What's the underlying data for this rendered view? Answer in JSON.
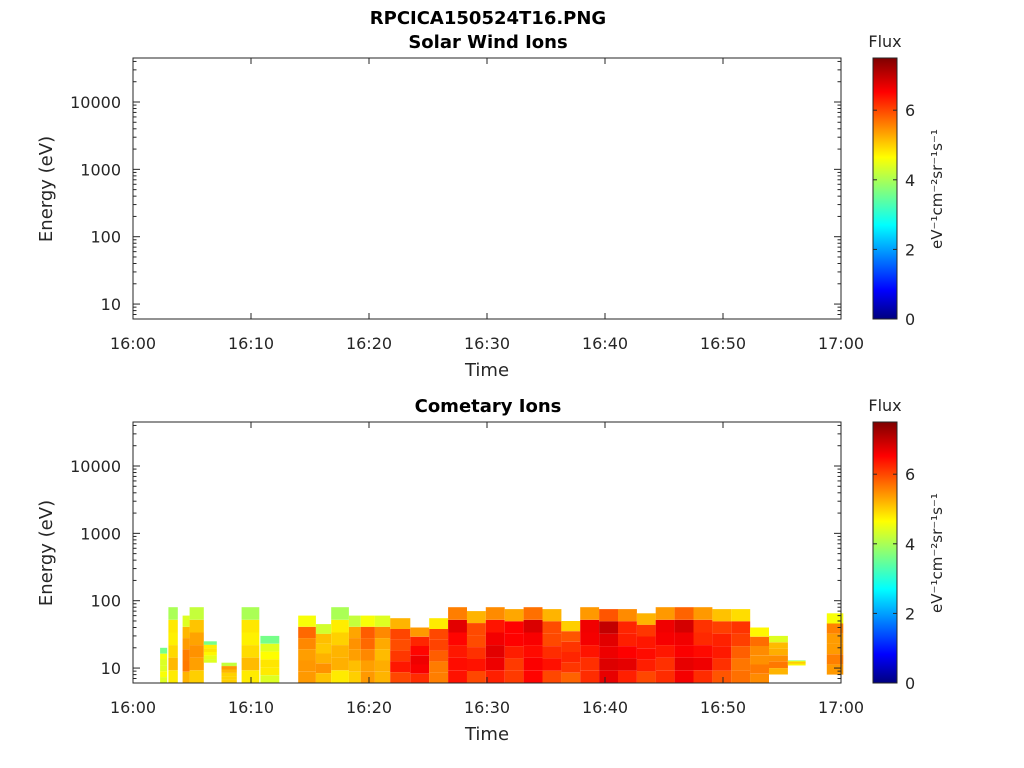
{
  "figure": {
    "title": "RPCICA150524T16.PNG"
  },
  "colormap": {
    "name": "jet",
    "stops": [
      "#00007f",
      "#0000ff",
      "#00ffff",
      "#ffff00",
      "#ff0000",
      "#7f0000"
    ]
  },
  "chart_data": [
    {
      "type": "heatmap",
      "title": "Solar Wind Ions",
      "xlabel": "Time",
      "ylabel": "Energy (eV)",
      "x_ticks": [
        "16:00",
        "16:10",
        "16:20",
        "16:30",
        "16:40",
        "16:50",
        "17:00"
      ],
      "xlim_minutes": [
        0,
        60
      ],
      "y_ticks": [
        "10",
        "100",
        "1000",
        "10000"
      ],
      "y_tick_values": [
        10,
        100,
        1000,
        10000
      ],
      "ylim": [
        6,
        45000
      ],
      "y_scale": "log",
      "colorbar": {
        "title": "Flux",
        "label": "eV⁻¹cm⁻²sr⁻¹s⁻¹",
        "ticks": [
          "0",
          "2",
          "4",
          "6"
        ],
        "range": [
          0,
          7.5
        ]
      },
      "columns": []
    },
    {
      "type": "heatmap",
      "title": "Cometary Ions",
      "xlabel": "Time",
      "ylabel": "Energy (eV)",
      "x_ticks": [
        "16:00",
        "16:10",
        "16:20",
        "16:30",
        "16:40",
        "16:50",
        "17:00"
      ],
      "xlim_minutes": [
        0,
        60
      ],
      "y_ticks": [
        "10",
        "100",
        "1000",
        "10000"
      ],
      "y_tick_values": [
        10,
        100,
        1000,
        10000
      ],
      "ylim": [
        6,
        45000
      ],
      "y_scale": "log",
      "colorbar": {
        "title": "Flux",
        "label": "eV⁻¹cm⁻²sr⁻¹s⁻¹",
        "ticks": [
          "0",
          "2",
          "4",
          "6"
        ],
        "range": [
          0,
          7.5
        ]
      },
      "columns": [
        {
          "t": 2.3,
          "w": 0.6,
          "emin": 6,
          "emax": 20,
          "flux": 4.6
        },
        {
          "t": 3.0,
          "w": 0.8,
          "emin": 6,
          "emax": 80,
          "flux": 5.0
        },
        {
          "t": 4.2,
          "w": 0.6,
          "emin": 6,
          "emax": 60,
          "flux": 5.4
        },
        {
          "t": 4.8,
          "w": 1.2,
          "emin": 6,
          "emax": 80,
          "flux": 5.2
        },
        {
          "t": 6.0,
          "w": 1.1,
          "emin": 12,
          "emax": 25,
          "flux": 4.6
        },
        {
          "t": 7.5,
          "w": 1.3,
          "emin": 6,
          "emax": 12,
          "flux": 5.2
        },
        {
          "t": 9.2,
          "w": 1.5,
          "emin": 6,
          "emax": 80,
          "flux": 5.0
        },
        {
          "t": 10.8,
          "w": 1.6,
          "emin": 6,
          "emax": 30,
          "flux": 4.6
        },
        {
          "t": 14.0,
          "w": 1.5,
          "emin": 6,
          "emax": 60,
          "flux": 5.6
        },
        {
          "t": 15.5,
          "w": 1.3,
          "emin": 6,
          "emax": 45,
          "flux": 5.3
        },
        {
          "t": 16.8,
          "w": 1.5,
          "emin": 6,
          "emax": 80,
          "flux": 5.0
        },
        {
          "t": 18.3,
          "w": 1.0,
          "emin": 6,
          "emax": 60,
          "flux": 5.2
        },
        {
          "t": 19.3,
          "w": 1.2,
          "emin": 6,
          "emax": 60,
          "flux": 5.6
        },
        {
          "t": 20.5,
          "w": 1.3,
          "emin": 6,
          "emax": 60,
          "flux": 5.4
        },
        {
          "t": 21.8,
          "w": 1.7,
          "emin": 6,
          "emax": 55,
          "flux": 6.2
        },
        {
          "t": 23.5,
          "w": 1.6,
          "emin": 6,
          "emax": 40,
          "flux": 6.4
        },
        {
          "t": 25.1,
          "w": 1.6,
          "emin": 6,
          "emax": 55,
          "flux": 5.8
        },
        {
          "t": 26.7,
          "w": 1.6,
          "emin": 6,
          "emax": 80,
          "flux": 6.6
        },
        {
          "t": 28.3,
          "w": 1.6,
          "emin": 6,
          "emax": 70,
          "flux": 6.2
        },
        {
          "t": 29.9,
          "w": 1.6,
          "emin": 6,
          "emax": 80,
          "flux": 6.5
        },
        {
          "t": 31.5,
          "w": 1.6,
          "emin": 6,
          "emax": 75,
          "flux": 6.3
        },
        {
          "t": 33.1,
          "w": 1.6,
          "emin": 6,
          "emax": 80,
          "flux": 6.7
        },
        {
          "t": 34.7,
          "w": 1.6,
          "emin": 6,
          "emax": 75,
          "flux": 6.2
        },
        {
          "t": 36.3,
          "w": 1.6,
          "emin": 6,
          "emax": 50,
          "flux": 6.0
        },
        {
          "t": 37.9,
          "w": 1.6,
          "emin": 6,
          "emax": 80,
          "flux": 6.4
        },
        {
          "t": 39.5,
          "w": 1.6,
          "emin": 6,
          "emax": 75,
          "flux": 6.9
        },
        {
          "t": 41.1,
          "w": 1.6,
          "emin": 6,
          "emax": 75,
          "flux": 6.5
        },
        {
          "t": 42.7,
          "w": 1.6,
          "emin": 6,
          "emax": 65,
          "flux": 6.2
        },
        {
          "t": 44.3,
          "w": 1.6,
          "emin": 6,
          "emax": 80,
          "flux": 6.4
        },
        {
          "t": 45.9,
          "w": 1.6,
          "emin": 6,
          "emax": 80,
          "flux": 6.8
        },
        {
          "t": 47.5,
          "w": 1.6,
          "emin": 6,
          "emax": 80,
          "flux": 6.4
        },
        {
          "t": 49.1,
          "w": 1.6,
          "emin": 6,
          "emax": 75,
          "flux": 6.1
        },
        {
          "t": 50.7,
          "w": 1.6,
          "emin": 6,
          "emax": 75,
          "flux": 5.9
        },
        {
          "t": 52.3,
          "w": 1.6,
          "emin": 6,
          "emax": 40,
          "flux": 5.7
        },
        {
          "t": 53.9,
          "w": 1.6,
          "emin": 8,
          "emax": 30,
          "flux": 5.4
        },
        {
          "t": 55.5,
          "w": 1.5,
          "emin": 11,
          "emax": 13,
          "flux": 4.8
        },
        {
          "t": 58.8,
          "w": 1.4,
          "emin": 8,
          "emax": 65,
          "flux": 5.6
        }
      ]
    }
  ]
}
